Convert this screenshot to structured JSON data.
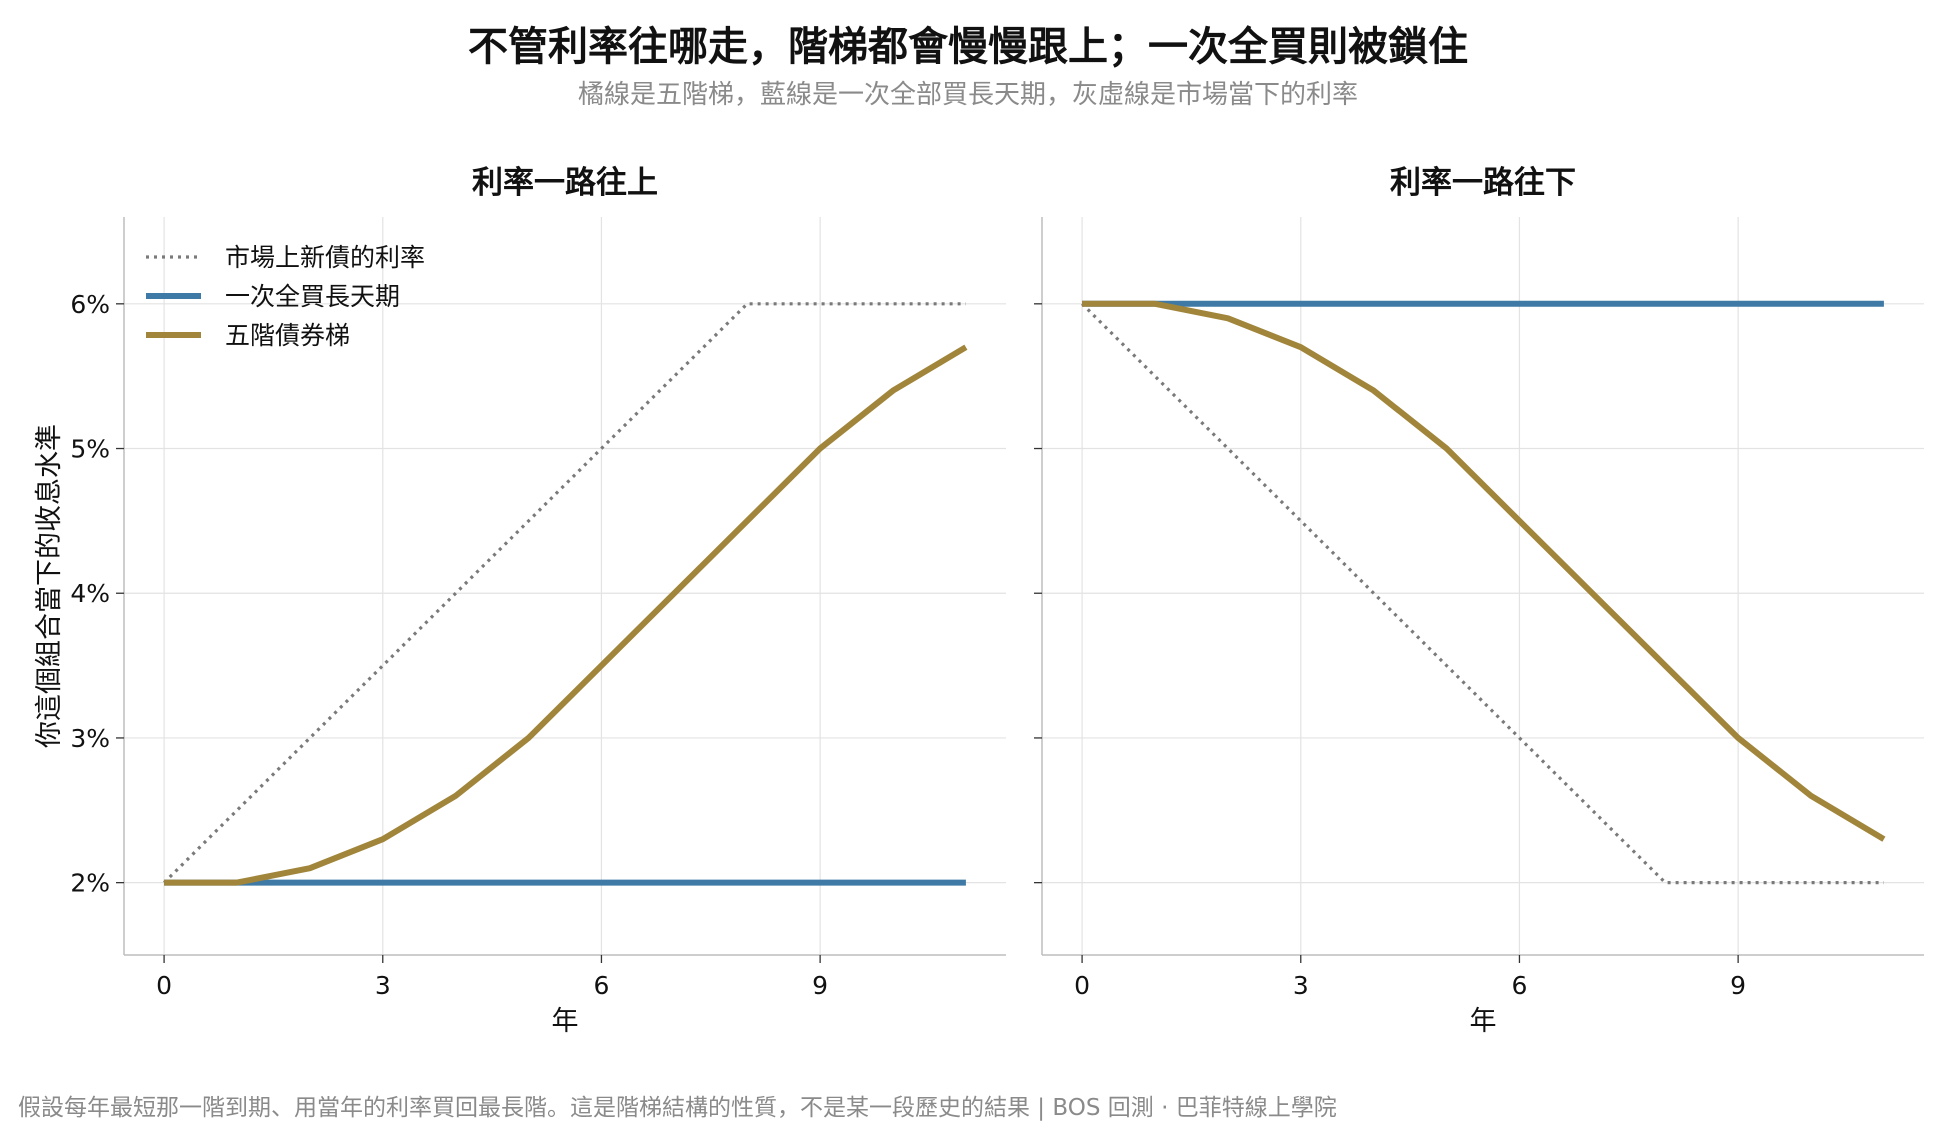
{
  "title": "不管利率往哪走，階梯都會慢慢跟上；一次全買則被鎖住",
  "subtitle": "橘線是五階梯，藍線是一次全部買長天期，灰虛線是市場當下的利率",
  "footer": "假設每年最短那一階到期、用當年的利率買回最長階。這是階梯結構的性質，不是某一段歷史的結果 | BOS 回測 ·  巴菲特線上學院",
  "colors": {
    "market": "#7a7a7a",
    "lump": "#3e7aa5",
    "ladder": "#a0853a",
    "grid": "#e3e3e3",
    "axis": "#bdbdbd"
  },
  "chart_data": [
    {
      "type": "line",
      "title": "利率一路往上",
      "xlabel": "年",
      "ylabel": "你這個組合當下的收息水準",
      "x": [
        0,
        1,
        2,
        3,
        4,
        5,
        6,
        7,
        8,
        9,
        10,
        11
      ],
      "xticks": [
        "0",
        "3",
        "6",
        "9"
      ],
      "yticks": [
        "2%",
        "3%",
        "4%",
        "5%",
        "6%"
      ],
      "ylim": [
        1.5,
        6.6
      ],
      "xlim": [
        -0.55,
        11.55
      ],
      "grid": true,
      "legend": "top-left",
      "series": [
        {
          "name": "市場上新債的利率",
          "style": "dotted",
          "color": "#7a7a7a",
          "values": [
            2.0,
            2.5,
            3.0,
            3.5,
            4.0,
            4.5,
            5.0,
            5.5,
            6.0,
            6.0,
            6.0,
            6.0
          ]
        },
        {
          "name": "一次全買長天期",
          "style": "solid",
          "color": "#3e7aa5",
          "values": [
            2.0,
            2.0,
            2.0,
            2.0,
            2.0,
            2.0,
            2.0,
            2.0,
            2.0,
            2.0,
            2.0,
            2.0
          ]
        },
        {
          "name": "五階債券梯",
          "style": "solid",
          "color": "#a0853a",
          "values": [
            2.0,
            2.0,
            2.1,
            2.3,
            2.6,
            3.0,
            3.5,
            4.0,
            4.5,
            5.0,
            5.4,
            5.7
          ]
        }
      ]
    },
    {
      "type": "line",
      "title": "利率一路往下",
      "xlabel": "年",
      "ylabel": "",
      "x": [
        0,
        1,
        2,
        3,
        4,
        5,
        6,
        7,
        8,
        9,
        10,
        11
      ],
      "xticks": [
        "0",
        "3",
        "6",
        "9"
      ],
      "yticks": [
        "2%",
        "3%",
        "4%",
        "5%",
        "6%"
      ],
      "ylim": [
        1.5,
        6.6
      ],
      "xlim": [
        -0.55,
        11.55
      ],
      "grid": true,
      "series": [
        {
          "style": "dotted",
          "color": "#7a7a7a",
          "values": [
            6.0,
            5.5,
            5.0,
            4.5,
            4.0,
            3.5,
            3.0,
            2.5,
            2.0,
            2.0,
            2.0,
            2.0
          ]
        },
        {
          "style": "solid",
          "color": "#3e7aa5",
          "values": [
            6.0,
            6.0,
            6.0,
            6.0,
            6.0,
            6.0,
            6.0,
            6.0,
            6.0,
            6.0,
            6.0,
            6.0
          ]
        },
        {
          "style": "solid",
          "color": "#a0853a",
          "values": [
            6.0,
            6.0,
            5.9,
            5.7,
            5.4,
            5.0,
            4.5,
            4.0,
            3.5,
            3.0,
            2.6,
            2.3
          ]
        }
      ]
    }
  ]
}
